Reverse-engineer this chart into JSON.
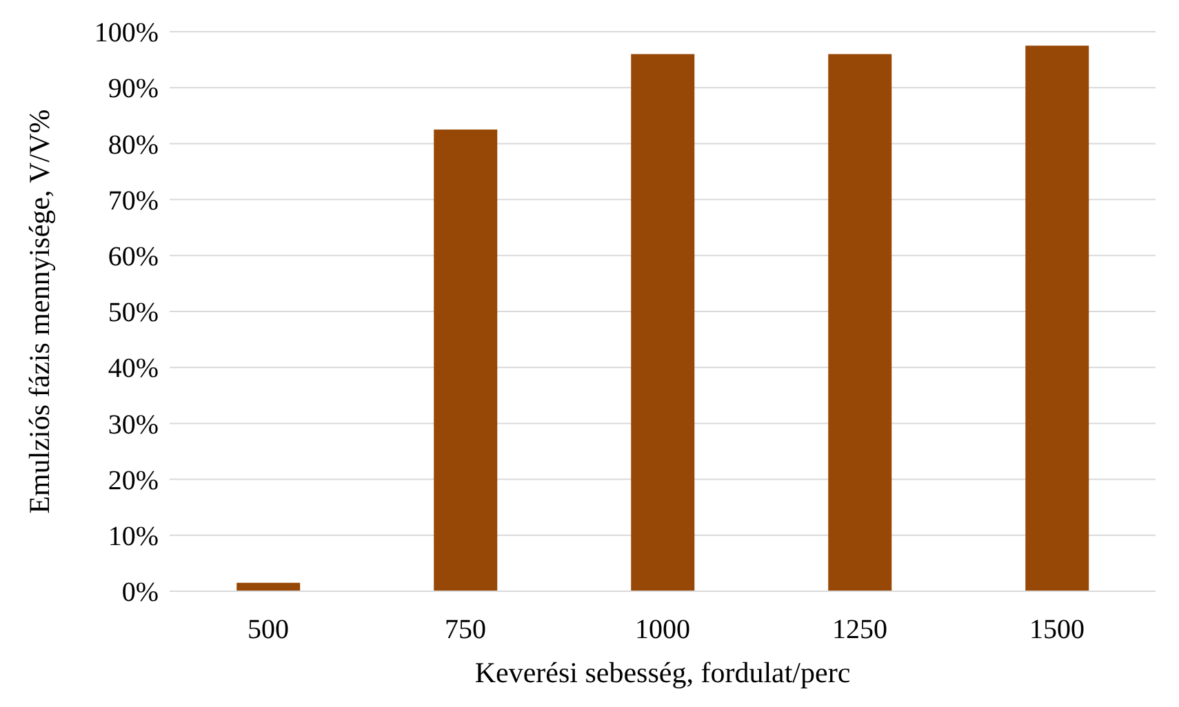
{
  "chart_data": {
    "type": "bar",
    "xlabel": "Keverési sebesség, fordulat/perc",
    "ylabel": "Emulziós fázis mennyisége, V/V%",
    "categories": [
      "500",
      "750",
      "1000",
      "1250",
      "1500"
    ],
    "values": [
      1.5,
      82.5,
      96,
      96,
      97.5
    ],
    "color": "#974706",
    "ylim": [
      0,
      100
    ],
    "yticks": [
      {
        "value": 0,
        "label": "0%"
      },
      {
        "value": 10,
        "label": "10%"
      },
      {
        "value": 20,
        "label": "20%"
      },
      {
        "value": 30,
        "label": "30%"
      },
      {
        "value": 40,
        "label": "40%"
      },
      {
        "value": 50,
        "label": "50%"
      },
      {
        "value": 60,
        "label": "60%"
      },
      {
        "value": 70,
        "label": "70%"
      },
      {
        "value": 80,
        "label": "80%"
      },
      {
        "value": 90,
        "label": "90%"
      },
      {
        "value": 100,
        "label": "100%"
      }
    ],
    "grid": "y"
  }
}
